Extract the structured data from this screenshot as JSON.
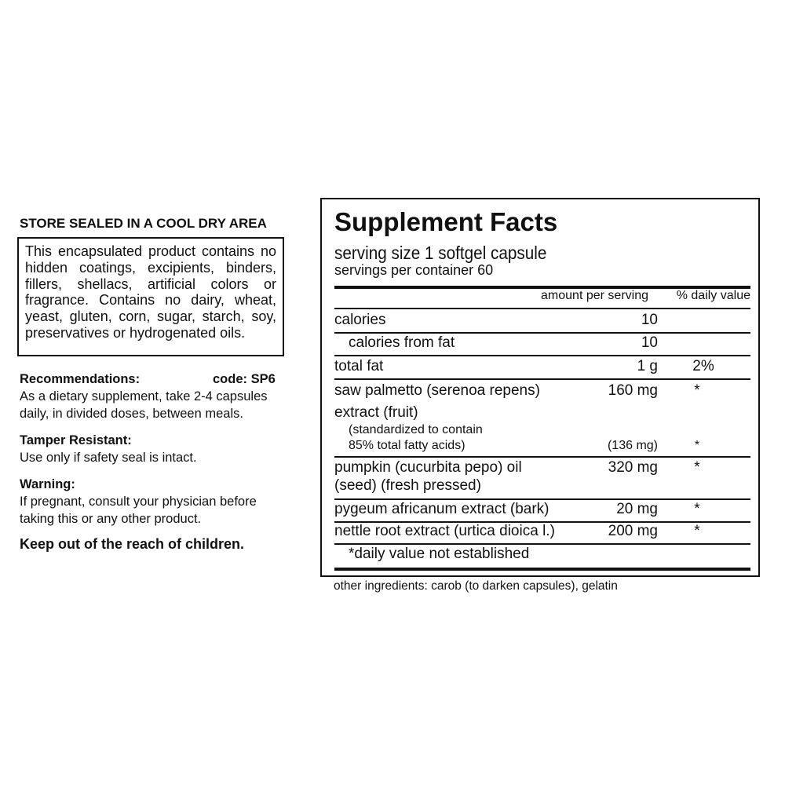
{
  "left": {
    "store": "STORE SEALED IN A COOL DRY AREA",
    "box_lines": [
      "This encapsulated product contains no",
      "hidden coatings, excipients, binders,",
      "fillers, shellacs, artificial colors or",
      "fragrance. Contains no dairy, wheat,",
      "yeast, gluten, corn, sugar, starch, soy,",
      "preservatives or hydrogenated oils."
    ],
    "rec_heading": "Recommendations:",
    "code": "code: SP6",
    "rec_lines": [
      "As a dietary supplement, take 2-4 capsules",
      "daily, in divided doses, between meals."
    ],
    "tamper_heading": "Tamper Resistant:",
    "tamper_text": "Use only if safety seal is intact.",
    "warning_heading": "Warning:",
    "warning_lines": [
      "If pregnant, consult your physician before",
      "taking this or any other product."
    ],
    "keep_out": "Keep out of the reach of children."
  },
  "facts": {
    "title": "Supplement Facts",
    "serving_size": "serving size  1 softgel capsule",
    "servings": "servings per container  60",
    "col_amount": "amount per serving",
    "col_dv": "% daily value",
    "calories": {
      "label": "calories",
      "amount": "10"
    },
    "calories_fat": {
      "label": "calories from fat",
      "amount": "10"
    },
    "total_fat": {
      "label": "total fat",
      "amount": "1 g",
      "dv": "2%"
    },
    "saw": {
      "l1": "saw palmetto (serenoa repens)",
      "l2": "extract (fruit)",
      "l3": "(standardized to contain",
      "l4": "85% total fatty acids)",
      "amount": "160 mg",
      "dv": "*",
      "amount2": "(136 mg)",
      "dv2": "*"
    },
    "pumpkin": {
      "l1": "pumpkin (cucurbita pepo) oil",
      "l2": "(seed) (fresh pressed)",
      "amount": "320 mg",
      "dv": "*"
    },
    "pygeum": {
      "label": "pygeum africanum extract (bark)",
      "amount": "20 mg",
      "dv": "*"
    },
    "nettle": {
      "label": "nettle root extract (urtica dioica l.)",
      "amount": "200 mg",
      "dv": "*"
    },
    "footnote": "*daily value not established"
  },
  "other_ingredients": "other ingredients: carob (to darken capsules), gelatin"
}
